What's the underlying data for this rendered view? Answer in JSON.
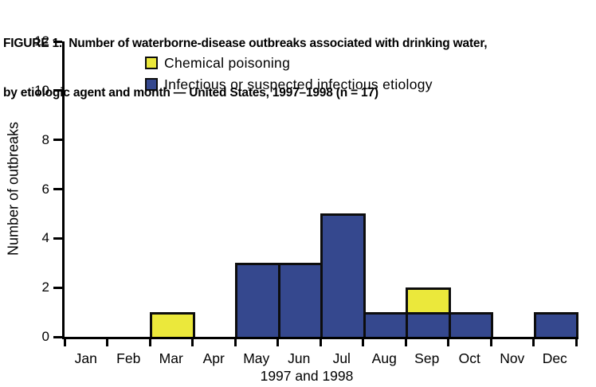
{
  "title": {
    "line1": "FIGURE 1.  Number of waterborne-disease outbreaks associated with drinking water,",
    "line2": "by etiologic agent and month — United States, 1997–1998 (n = 17)"
  },
  "chart_data": {
    "type": "bar",
    "stacked": true,
    "title": "FIGURE 1. Number of waterborne-disease outbreaks associated with drinking water, by etiologic agent and month — United States, 1997–1998 (n = 17)",
    "n_label": "n = 17",
    "xlabel": "1997 and 1998",
    "ylabel": "Number of outbreaks",
    "ylim": [
      0,
      12
    ],
    "yticks": [
      0,
      2,
      4,
      6,
      8,
      10,
      12
    ],
    "grid": false,
    "legend_position": "top-left-inside",
    "categories": [
      "Jan",
      "Feb",
      "Mar",
      "Apr",
      "May",
      "Jun",
      "Jul",
      "Aug",
      "Sep",
      "Oct",
      "Nov",
      "Dec"
    ],
    "series": [
      {
        "name": "Chemical poisoning",
        "color": "#ebe83b",
        "stack_index": 1,
        "values": [
          0,
          0,
          1,
          0,
          0,
          0,
          0,
          0,
          1,
          0,
          0,
          0
        ]
      },
      {
        "name": "Infectious or suspected infectious etiology",
        "color": "#35488e",
        "stack_index": 0,
        "values": [
          0,
          0,
          0,
          0,
          3,
          3,
          5,
          1,
          1,
          1,
          0,
          1
        ]
      }
    ],
    "colors": {
      "outline": "#0d0d0d",
      "axis": "#000000",
      "background": "#ffffff"
    }
  }
}
